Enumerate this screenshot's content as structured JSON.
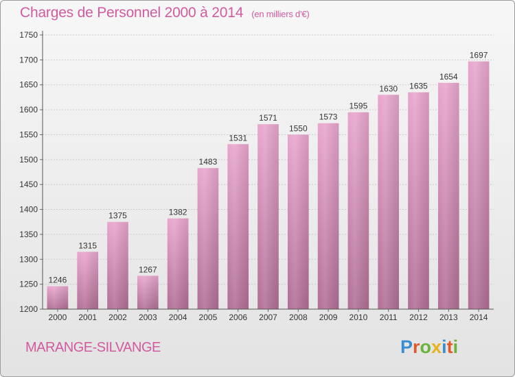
{
  "header": {
    "title": "Charges de Personnel 2000 à 2014",
    "subtitle": "(en milliers d'€)"
  },
  "footer": {
    "city": "MARANGE-SILVANGE",
    "logo": "Proxiti"
  },
  "colors": {
    "accent": "#d25a9e",
    "bar_top": "#e8a6cd",
    "bar_bottom": "#b06e94"
  },
  "chart_data": {
    "type": "bar",
    "categories": [
      "2000",
      "2001",
      "2002",
      "2003",
      "2004",
      "2005",
      "2006",
      "2007",
      "2008",
      "2009",
      "2010",
      "2011",
      "2012",
      "2013",
      "2014"
    ],
    "values": [
      1246,
      1315,
      1375,
      1267,
      1382,
      1483,
      1531,
      1571,
      1550,
      1573,
      1595,
      1630,
      1635,
      1654,
      1697
    ],
    "title": "Charges de Personnel 2000 à 2014",
    "xlabel": "",
    "ylabel": "",
    "ylim": [
      1200,
      1750
    ],
    "yticks": [
      1200,
      1250,
      1300,
      1350,
      1400,
      1450,
      1500,
      1550,
      1600,
      1650,
      1700,
      1750
    ],
    "grid": true
  }
}
